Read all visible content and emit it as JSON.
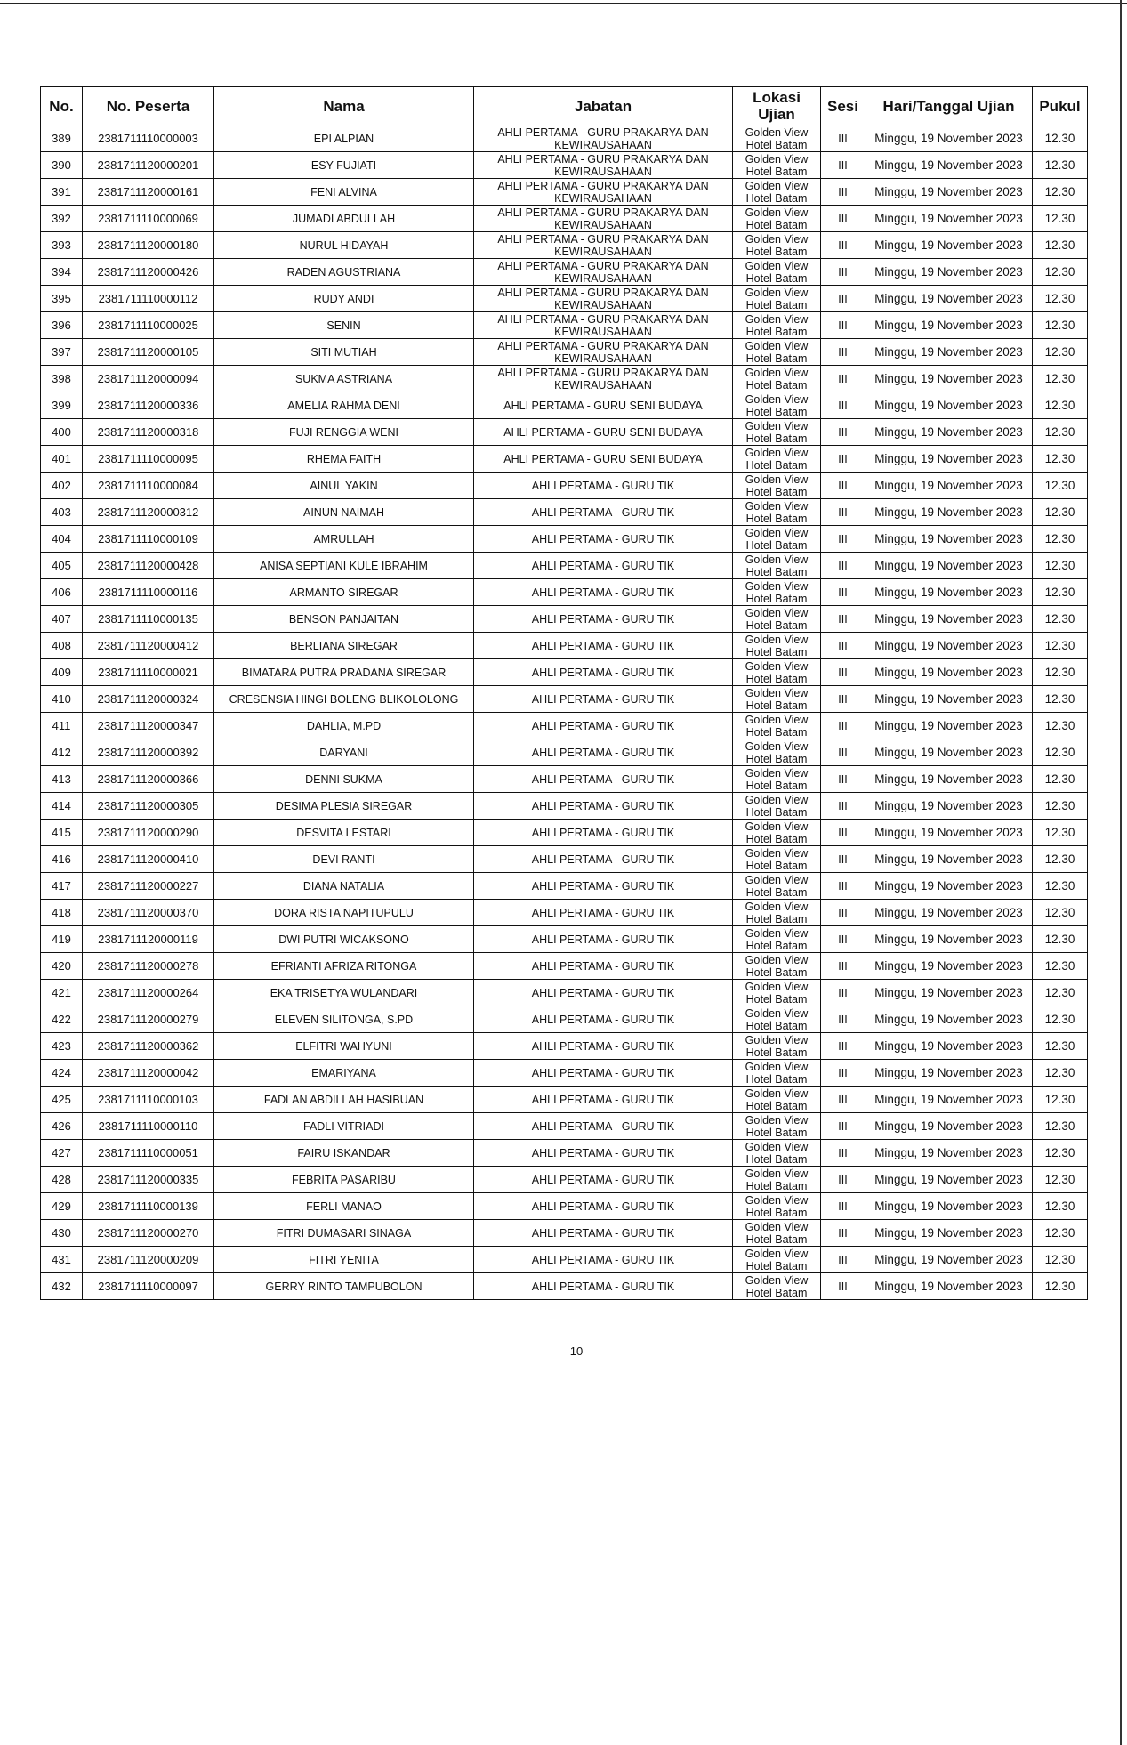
{
  "table": {
    "headers": [
      "No.",
      "No. Peserta",
      "Nama",
      "Jabatan",
      "Lokasi Ujian",
      "Sesi",
      "Hari/Tanggal Ujian",
      "Pukul"
    ],
    "rows": [
      [
        "389",
        "2381711110000003",
        "EPI ALPIAN",
        "AHLI PERTAMA - GURU PRAKARYA DAN KEWIRAUSAHAAN",
        "Golden View Hotel Batam",
        "III",
        "Minggu, 19 November 2023",
        "12.30"
      ],
      [
        "390",
        "2381711120000201",
        "ESY FUJIATI",
        "AHLI PERTAMA - GURU PRAKARYA DAN KEWIRAUSAHAAN",
        "Golden View Hotel Batam",
        "III",
        "Minggu, 19 November 2023",
        "12.30"
      ],
      [
        "391",
        "2381711120000161",
        "FENI ALVINA",
        "AHLI PERTAMA - GURU PRAKARYA DAN KEWIRAUSAHAAN",
        "Golden View Hotel Batam",
        "III",
        "Minggu, 19 November 2023",
        "12.30"
      ],
      [
        "392",
        "2381711110000069",
        "JUMADI ABDULLAH",
        "AHLI PERTAMA - GURU PRAKARYA DAN KEWIRAUSAHAAN",
        "Golden View Hotel Batam",
        "III",
        "Minggu, 19 November 2023",
        "12.30"
      ],
      [
        "393",
        "2381711120000180",
        "NURUL HIDAYAH",
        "AHLI PERTAMA - GURU PRAKARYA DAN KEWIRAUSAHAAN",
        "Golden View Hotel Batam",
        "III",
        "Minggu, 19 November 2023",
        "12.30"
      ],
      [
        "394",
        "2381711120000426",
        "RADEN AGUSTRIANA",
        "AHLI PERTAMA - GURU PRAKARYA DAN KEWIRAUSAHAAN",
        "Golden View Hotel Batam",
        "III",
        "Minggu, 19 November 2023",
        "12.30"
      ],
      [
        "395",
        "2381711110000112",
        "RUDY ANDI",
        "AHLI PERTAMA - GURU PRAKARYA DAN KEWIRAUSAHAAN",
        "Golden View Hotel Batam",
        "III",
        "Minggu, 19 November 2023",
        "12.30"
      ],
      [
        "396",
        "2381711110000025",
        "SENIN",
        "AHLI PERTAMA - GURU PRAKARYA DAN KEWIRAUSAHAAN",
        "Golden View Hotel Batam",
        "III",
        "Minggu, 19 November 2023",
        "12.30"
      ],
      [
        "397",
        "2381711120000105",
        "SITI MUTIAH",
        "AHLI PERTAMA - GURU PRAKARYA DAN KEWIRAUSAHAAN",
        "Golden View Hotel Batam",
        "III",
        "Minggu, 19 November 2023",
        "12.30"
      ],
      [
        "398",
        "2381711120000094",
        "SUKMA ASTRIANA",
        "AHLI PERTAMA - GURU PRAKARYA DAN KEWIRAUSAHAAN",
        "Golden View Hotel Batam",
        "III",
        "Minggu, 19 November 2023",
        "12.30"
      ],
      [
        "399",
        "2381711120000336",
        "AMELIA RAHMA DENI",
        "AHLI PERTAMA - GURU SENI BUDAYA",
        "Golden View Hotel Batam",
        "III",
        "Minggu, 19 November 2023",
        "12.30"
      ],
      [
        "400",
        "2381711120000318",
        "FUJI RENGGIA WENI",
        "AHLI PERTAMA - GURU SENI BUDAYA",
        "Golden View Hotel Batam",
        "III",
        "Minggu, 19 November 2023",
        "12.30"
      ],
      [
        "401",
        "2381711110000095",
        "RHEMA FAITH",
        "AHLI PERTAMA - GURU SENI BUDAYA",
        "Golden View Hotel Batam",
        "III",
        "Minggu, 19 November 2023",
        "12.30"
      ],
      [
        "402",
        "2381711110000084",
        "AINUL YAKIN",
        "AHLI PERTAMA - GURU TIK",
        "Golden View Hotel Batam",
        "III",
        "Minggu, 19 November 2023",
        "12.30"
      ],
      [
        "403",
        "2381711120000312",
        "AINUN NAIMAH",
        "AHLI PERTAMA - GURU TIK",
        "Golden View Hotel Batam",
        "III",
        "Minggu, 19 November 2023",
        "12.30"
      ],
      [
        "404",
        "2381711110000109",
        "AMRULLAH",
        "AHLI PERTAMA - GURU TIK",
        "Golden View Hotel Batam",
        "III",
        "Minggu, 19 November 2023",
        "12.30"
      ],
      [
        "405",
        "2381711120000428",
        "ANISA SEPTIANI KULE IBRAHIM",
        "AHLI PERTAMA - GURU TIK",
        "Golden View Hotel Batam",
        "III",
        "Minggu, 19 November 2023",
        "12.30"
      ],
      [
        "406",
        "2381711110000116",
        "ARMANTO SIREGAR",
        "AHLI PERTAMA - GURU TIK",
        "Golden View Hotel Batam",
        "III",
        "Minggu, 19 November 2023",
        "12.30"
      ],
      [
        "407",
        "2381711110000135",
        "BENSON PANJAITAN",
        "AHLI PERTAMA - GURU TIK",
        "Golden View Hotel Batam",
        "III",
        "Minggu, 19 November 2023",
        "12.30"
      ],
      [
        "408",
        "2381711120000412",
        "BERLIANA SIREGAR",
        "AHLI PERTAMA - GURU TIK",
        "Golden View Hotel Batam",
        "III",
        "Minggu, 19 November 2023",
        "12.30"
      ],
      [
        "409",
        "2381711110000021",
        "BIMATARA PUTRA PRADANA SIREGAR",
        "AHLI PERTAMA - GURU TIK",
        "Golden View Hotel Batam",
        "III",
        "Minggu, 19 November 2023",
        "12.30"
      ],
      [
        "410",
        "2381711120000324",
        "CRESENSIA HINGI BOLENG BLIKOLOLONG",
        "AHLI PERTAMA - GURU TIK",
        "Golden View Hotel Batam",
        "III",
        "Minggu, 19 November 2023",
        "12.30"
      ],
      [
        "411",
        "2381711120000347",
        "DAHLIA, M.PD",
        "AHLI PERTAMA - GURU TIK",
        "Golden View Hotel Batam",
        "III",
        "Minggu, 19 November 2023",
        "12.30"
      ],
      [
        "412",
        "2381711120000392",
        "DARYANI",
        "AHLI PERTAMA - GURU TIK",
        "Golden View Hotel Batam",
        "III",
        "Minggu, 19 November 2023",
        "12.30"
      ],
      [
        "413",
        "2381711120000366",
        "DENNI SUKMA",
        "AHLI PERTAMA - GURU TIK",
        "Golden View Hotel Batam",
        "III",
        "Minggu, 19 November 2023",
        "12.30"
      ],
      [
        "414",
        "2381711120000305",
        "DESIMA PLESIA SIREGAR",
        "AHLI PERTAMA - GURU TIK",
        "Golden View Hotel Batam",
        "III",
        "Minggu, 19 November 2023",
        "12.30"
      ],
      [
        "415",
        "2381711120000290",
        "DESVITA LESTARI",
        "AHLI PERTAMA - GURU TIK",
        "Golden View Hotel Batam",
        "III",
        "Minggu, 19 November 2023",
        "12.30"
      ],
      [
        "416",
        "2381711120000410",
        "DEVI RANTI",
        "AHLI PERTAMA - GURU TIK",
        "Golden View Hotel Batam",
        "III",
        "Minggu, 19 November 2023",
        "12.30"
      ],
      [
        "417",
        "2381711120000227",
        "DIANA NATALIA",
        "AHLI PERTAMA - GURU TIK",
        "Golden View Hotel Batam",
        "III",
        "Minggu, 19 November 2023",
        "12.30"
      ],
      [
        "418",
        "2381711120000370",
        "DORA RISTA NAPITUPULU",
        "AHLI PERTAMA - GURU TIK",
        "Golden View Hotel Batam",
        "III",
        "Minggu, 19 November 2023",
        "12.30"
      ],
      [
        "419",
        "2381711120000119",
        "DWI PUTRI WICAKSONO",
        "AHLI PERTAMA - GURU TIK",
        "Golden View Hotel Batam",
        "III",
        "Minggu, 19 November 2023",
        "12.30"
      ],
      [
        "420",
        "2381711120000278",
        "EFRIANTI AFRIZA RITONGA",
        "AHLI PERTAMA - GURU TIK",
        "Golden View Hotel Batam",
        "III",
        "Minggu, 19 November 2023",
        "12.30"
      ],
      [
        "421",
        "2381711120000264",
        "EKA TRISETYA WULANDARI",
        "AHLI PERTAMA - GURU TIK",
        "Golden View Hotel Batam",
        "III",
        "Minggu, 19 November 2023",
        "12.30"
      ],
      [
        "422",
        "2381711120000279",
        "ELEVEN SILITONGA, S.PD",
        "AHLI PERTAMA - GURU TIK",
        "Golden View Hotel Batam",
        "III",
        "Minggu, 19 November 2023",
        "12.30"
      ],
      [
        "423",
        "2381711120000362",
        "ELFITRI WAHYUNI",
        "AHLI PERTAMA - GURU TIK",
        "Golden View Hotel Batam",
        "III",
        "Minggu, 19 November 2023",
        "12.30"
      ],
      [
        "424",
        "2381711120000042",
        "EMARIYANA",
        "AHLI PERTAMA - GURU TIK",
        "Golden View Hotel Batam",
        "III",
        "Minggu, 19 November 2023",
        "12.30"
      ],
      [
        "425",
        "2381711110000103",
        "FADLAN ABDILLAH HASIBUAN",
        "AHLI PERTAMA - GURU TIK",
        "Golden View Hotel Batam",
        "III",
        "Minggu, 19 November 2023",
        "12.30"
      ],
      [
        "426",
        "2381711110000110",
        "FADLI VITRIADI",
        "AHLI PERTAMA - GURU TIK",
        "Golden View Hotel Batam",
        "III",
        "Minggu, 19 November 2023",
        "12.30"
      ],
      [
        "427",
        "2381711110000051",
        "FAIRU ISKANDAR",
        "AHLI PERTAMA - GURU TIK",
        "Golden View Hotel Batam",
        "III",
        "Minggu, 19 November 2023",
        "12.30"
      ],
      [
        "428",
        "2381711120000335",
        "FEBRITA PASARIBU",
        "AHLI PERTAMA - GURU TIK",
        "Golden View Hotel Batam",
        "III",
        "Minggu, 19 November 2023",
        "12.30"
      ],
      [
        "429",
        "2381711110000139",
        "FERLI MANAO",
        "AHLI PERTAMA - GURU TIK",
        "Golden View Hotel Batam",
        "III",
        "Minggu, 19 November 2023",
        "12.30"
      ],
      [
        "430",
        "2381711120000270",
        "FITRI DUMASARI SINAGA",
        "AHLI PERTAMA - GURU TIK",
        "Golden View Hotel Batam",
        "III",
        "Minggu, 19 November 2023",
        "12.30"
      ],
      [
        "431",
        "2381711120000209",
        "FITRI YENITA",
        "AHLI PERTAMA - GURU TIK",
        "Golden View Hotel Batam",
        "III",
        "Minggu, 19 November 2023",
        "12.30"
      ],
      [
        "432",
        "2381711110000097",
        "GERRY RINTO TAMPUBOLON",
        "AHLI PERTAMA - GURU TIK",
        "Golden View Hotel Batam",
        "III",
        "Minggu, 19 November 2023",
        "12.30"
      ]
    ]
  },
  "page_number": "10"
}
